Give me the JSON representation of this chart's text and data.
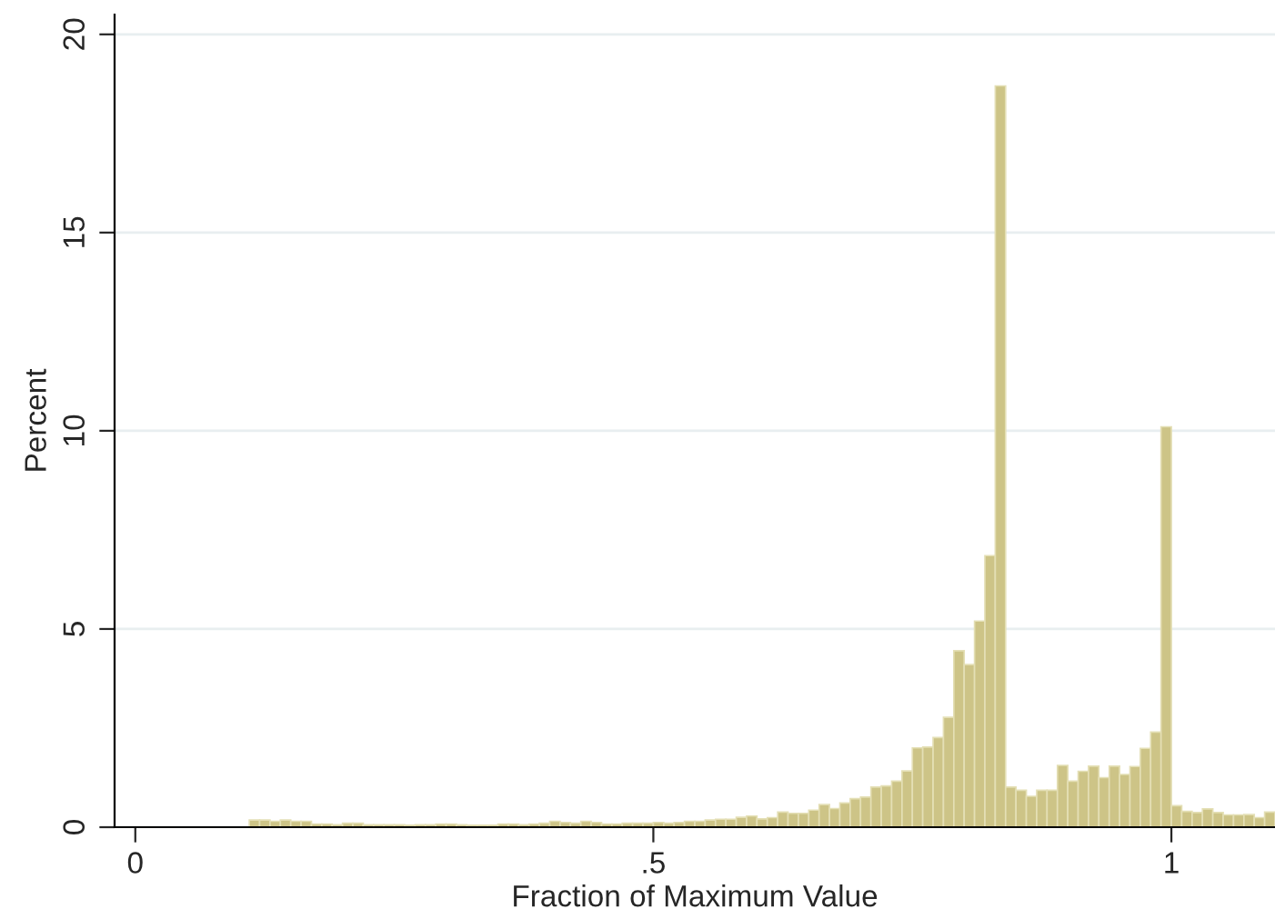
{
  "chart_data": {
    "type": "histogram",
    "xlabel": "Fraction of Maximum Value",
    "ylabel": "Percent",
    "color": "#cdc487",
    "bins": [
      0.11,
      0.12,
      0.13,
      0.14,
      0.15,
      0.16,
      0.17,
      0.18,
      0.19,
      0.2,
      0.21,
      0.22,
      0.23,
      0.24,
      0.25,
      0.26,
      0.27,
      0.28,
      0.29,
      0.3,
      0.31,
      0.32,
      0.33,
      0.34,
      0.35,
      0.36,
      0.37,
      0.38,
      0.39,
      0.4,
      0.41,
      0.42,
      0.43,
      0.44,
      0.45,
      0.46,
      0.47,
      0.48,
      0.49,
      0.5,
      0.51,
      0.52,
      0.53,
      0.54,
      0.55,
      0.56,
      0.57,
      0.58,
      0.59,
      0.6,
      0.61,
      0.62,
      0.63,
      0.64,
      0.65,
      0.66,
      0.67,
      0.68,
      0.69,
      0.7,
      0.71,
      0.72,
      0.73,
      0.74,
      0.75,
      0.76,
      0.77,
      0.78,
      0.79,
      0.8,
      0.81,
      0.82,
      0.83,
      0.84,
      0.85,
      0.86,
      0.87,
      0.88,
      0.89,
      0.9,
      0.91,
      0.92,
      0.93,
      0.94,
      0.95,
      0.96,
      0.97,
      0.98,
      0.99,
      1.0,
      1.01,
      1.02,
      1.03,
      1.04,
      1.05,
      1.06,
      1.07,
      1.08,
      1.09,
      1.1
    ],
    "values": [
      0.18,
      0.18,
      0.15,
      0.18,
      0.15,
      0.15,
      0.08,
      0.08,
      0.06,
      0.1,
      0.1,
      0.06,
      0.06,
      0.06,
      0.06,
      0.05,
      0.06,
      0.06,
      0.08,
      0.08,
      0.06,
      0.05,
      0.05,
      0.05,
      0.08,
      0.08,
      0.06,
      0.08,
      0.1,
      0.15,
      0.12,
      0.1,
      0.15,
      0.12,
      0.08,
      0.08,
      0.1,
      0.1,
      0.1,
      0.12,
      0.1,
      0.12,
      0.15,
      0.15,
      0.18,
      0.2,
      0.2,
      0.25,
      0.28,
      0.21,
      0.24,
      0.38,
      0.35,
      0.35,
      0.43,
      0.57,
      0.47,
      0.61,
      0.72,
      0.76,
      1.01,
      1.04,
      1.16,
      1.42,
      2.0,
      2.02,
      2.26,
      2.77,
      4.45,
      4.1,
      5.2,
      6.85,
      18.7,
      1.01,
      0.93,
      0.78,
      0.93,
      0.93,
      1.56,
      1.16,
      1.41,
      1.54,
      1.25,
      1.54,
      1.33,
      1.53,
      1.99,
      2.4,
      10.1,
      0.54,
      0.4,
      0.37,
      0.46,
      0.37,
      0.31,
      0.31,
      0.32,
      0.24,
      0.38
    ],
    "xlim": [
      -0.02,
      1.1
    ],
    "ylim": [
      0,
      20.5
    ],
    "xticks": [
      0,
      {
        "value": 0.5,
        "label": ".5"
      },
      1
    ],
    "yticks": [
      0,
      5,
      10,
      15,
      20
    ],
    "grid": "y"
  }
}
